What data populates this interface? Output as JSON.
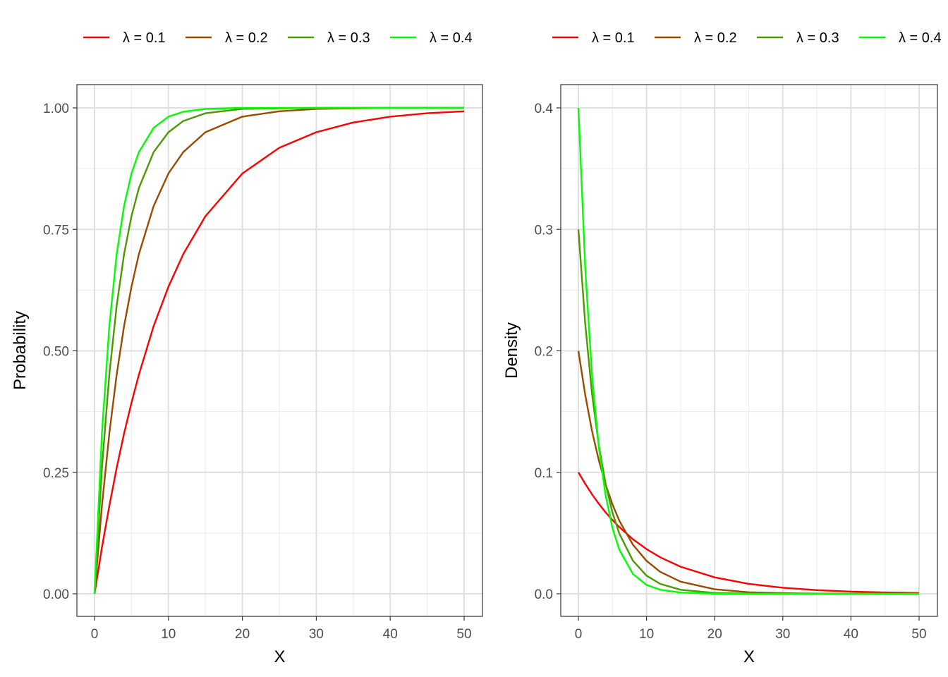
{
  "chart_data": [
    {
      "type": "line",
      "function": "cdf",
      "xlabel": "X",
      "ylabel": "Probability",
      "xlim": [
        0,
        50
      ],
      "ylim": [
        0,
        1
      ],
      "x_ticks": [
        0,
        10,
        20,
        30,
        40,
        50
      ],
      "x_tick_labels": [
        "0",
        "10",
        "20",
        "30",
        "40",
        "50"
      ],
      "y_ticks": [
        0,
        0.25,
        0.5,
        0.75,
        1.0
      ],
      "y_tick_labels": [
        "0.00",
        "0.25",
        "0.50",
        "0.75",
        "1.00"
      ],
      "grid": true,
      "legend_position": "top",
      "x": [
        0,
        1,
        2,
        3,
        4,
        5,
        6,
        8,
        10,
        12,
        15,
        20,
        25,
        30,
        35,
        40,
        45,
        50
      ],
      "series": [
        {
          "name": "λ = 0.1",
          "color": "#ff0000",
          "values": [
            0.0,
            0.095,
            0.181,
            0.259,
            0.33,
            0.393,
            0.451,
            0.551,
            0.632,
            0.699,
            0.777,
            0.865,
            0.918,
            0.95,
            0.97,
            0.982,
            0.989,
            0.993
          ]
        },
        {
          "name": "λ = 0.2",
          "color": "#994c00",
          "values": [
            0.0,
            0.181,
            0.33,
            0.451,
            0.551,
            0.632,
            0.699,
            0.798,
            0.865,
            0.909,
            0.95,
            0.982,
            0.993,
            0.998,
            0.999,
            1.0,
            1.0,
            1.0
          ]
        },
        {
          "name": "λ = 0.3",
          "color": "#4c9900",
          "values": [
            0.0,
            0.259,
            0.451,
            0.593,
            0.699,
            0.777,
            0.835,
            0.909,
            0.95,
            0.973,
            0.989,
            0.998,
            0.999,
            1.0,
            1.0,
            1.0,
            1.0,
            1.0
          ]
        },
        {
          "name": "λ = 0.4",
          "color": "#00ff00",
          "values": [
            0.0,
            0.33,
            0.551,
            0.699,
            0.798,
            0.865,
            0.909,
            0.959,
            0.982,
            0.992,
            0.998,
            1.0,
            1.0,
            1.0,
            1.0,
            1.0,
            1.0,
            1.0
          ]
        }
      ]
    },
    {
      "type": "line",
      "function": "pdf",
      "xlabel": "X",
      "ylabel": "Density",
      "xlim": [
        0,
        50
      ],
      "ylim": [
        0,
        0.4
      ],
      "x_ticks": [
        0,
        10,
        20,
        30,
        40,
        50
      ],
      "x_tick_labels": [
        "0",
        "10",
        "20",
        "30",
        "40",
        "50"
      ],
      "y_ticks": [
        0,
        0.1,
        0.2,
        0.3,
        0.4
      ],
      "y_tick_labels": [
        "0.0",
        "0.1",
        "0.2",
        "0.3",
        "0.4"
      ],
      "grid": true,
      "legend_position": "top",
      "x": [
        0,
        1,
        2,
        3,
        4,
        5,
        6,
        8,
        10,
        12,
        15,
        20,
        25,
        30,
        35,
        40,
        45,
        50
      ],
      "series": [
        {
          "name": "λ = 0.1",
          "color": "#ff0000",
          "values": [
            0.1,
            0.0905,
            0.0819,
            0.0741,
            0.067,
            0.0607,
            0.0549,
            0.0449,
            0.0368,
            0.0301,
            0.0223,
            0.0135,
            0.0082,
            0.005,
            0.003,
            0.0018,
            0.0011,
            0.0007
          ]
        },
        {
          "name": "λ = 0.2",
          "color": "#994c00",
          "values": [
            0.2,
            0.1637,
            0.134,
            0.1098,
            0.0899,
            0.0736,
            0.0602,
            0.0404,
            0.0271,
            0.0181,
            0.01,
            0.0037,
            0.0013,
            0.0005,
            0.0002,
            0.0001,
            0.0,
            0.0
          ]
        },
        {
          "name": "λ = 0.3",
          "color": "#4c9900",
          "values": [
            0.3,
            0.2222,
            0.1646,
            0.122,
            0.0904,
            0.0669,
            0.0496,
            0.0272,
            0.0149,
            0.0082,
            0.0033,
            0.0007,
            0.0002,
            0.0,
            0.0,
            0.0,
            0.0,
            0.0
          ]
        },
        {
          "name": "λ = 0.4",
          "color": "#00ff00",
          "values": [
            0.4,
            0.2681,
            0.1797,
            0.1205,
            0.0808,
            0.0541,
            0.0363,
            0.0163,
            0.0073,
            0.0033,
            0.001,
            0.0001,
            0.0,
            0.0,
            0.0,
            0.0,
            0.0,
            0.0
          ]
        }
      ]
    }
  ]
}
